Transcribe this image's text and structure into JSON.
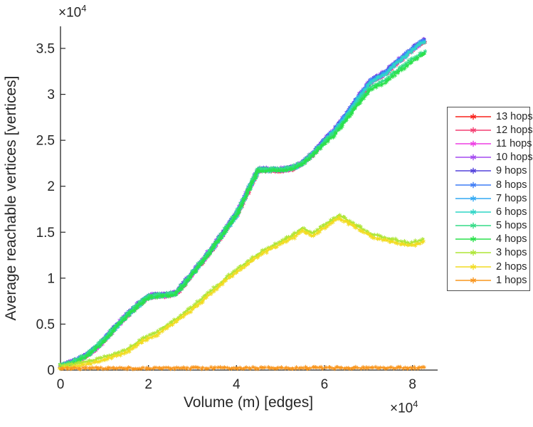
{
  "figure": {
    "background": "#ffffff",
    "axis_color": "#262626"
  },
  "chart_data": {
    "type": "line",
    "title": "",
    "xlabel": "Volume (m) [edges]",
    "ylabel": "Average reachable vertices [vertices]",
    "xlim": [
      0,
      85400
    ],
    "ylim": [
      0,
      37400
    ],
    "grid": false,
    "marker": "asterisk",
    "legend_position": "right-outside",
    "x_ticks": {
      "values": [
        0,
        20000,
        40000,
        60000,
        80000
      ],
      "labels": [
        "0",
        "2",
        "4",
        "6",
        "8"
      ],
      "multiplier_base": "×10",
      "multiplier_exp": "4"
    },
    "y_ticks": {
      "values": [
        0,
        5000,
        10000,
        15000,
        20000,
        25000,
        30000,
        35000
      ],
      "labels": [
        "0",
        "0.5",
        "1",
        "1.5",
        "2",
        "2.5",
        "3",
        "3.5"
      ],
      "multiplier_base": "×10",
      "multiplier_exp": "4"
    },
    "overlap_note": "Series 6-13 hops visually coincide (shared path 'bundle'); 4-5 hops coincide (path 'four'); 2-3 hops coincide (path 'two'). 'offset' is the small vertical separation in vertices at which a series peeks above the one drawn over it.",
    "paths": {
      "bundle": {
        "x": [
          0,
          2000,
          4000,
          6000,
          9000,
          12000,
          15000,
          18000,
          20000,
          22000,
          24000,
          26000,
          28000,
          31000,
          34000,
          37000,
          40000,
          42500,
          45000,
          47000,
          50000,
          53000,
          55000,
          57500,
          60000,
          62500,
          65000,
          67500,
          69000,
          70500,
          72000,
          74000,
          76000,
          78000,
          79500,
          81000,
          82000,
          83000
        ],
        "y": [
          300,
          600,
          1000,
          1500,
          2700,
          4300,
          5800,
          7100,
          7900,
          8000,
          8050,
          8200,
          9200,
          11000,
          12800,
          14800,
          16800,
          19300,
          21700,
          21700,
          21650,
          21900,
          22400,
          23500,
          24850,
          26100,
          27700,
          29400,
          30300,
          31300,
          31750,
          32250,
          33250,
          33950,
          34600,
          35200,
          35550,
          35800
        ]
      },
      "four": {
        "x": [
          0,
          2000,
          4000,
          6000,
          9000,
          12000,
          15000,
          18000,
          20000,
          22000,
          24000,
          26000,
          28000,
          31000,
          34000,
          37000,
          40000,
          42500,
          45000,
          47000,
          50000,
          53000,
          55000,
          57500,
          60000,
          62500,
          65000,
          67500,
          69000,
          70500,
          72000,
          74000,
          76000,
          78000,
          79500,
          81000,
          82000,
          83000
        ],
        "y": [
          300,
          600,
          1000,
          1500,
          2700,
          4300,
          5800,
          7100,
          7900,
          8000,
          8050,
          8200,
          9200,
          11000,
          12800,
          14800,
          16800,
          19300,
          21700,
          21700,
          21650,
          21900,
          22400,
          23400,
          24600,
          25700,
          27200,
          28800,
          29600,
          30500,
          30900,
          31300,
          32200,
          32800,
          33400,
          33900,
          34200,
          34400
        ]
      },
      "two": {
        "x": [
          0,
          3000,
          6000,
          10500,
          15000,
          18600,
          22000,
          26700,
          30000,
          34700,
          38000,
          42800,
          46000,
          50900,
          53000,
          54900,
          57400,
          60000,
          63300,
          66000,
          70300,
          73000,
          75900,
          79500,
          81600,
          82700
        ],
        "y": [
          200,
          350,
          600,
          1200,
          1900,
          3100,
          3900,
          5400,
          6600,
          8500,
          9900,
          11600,
          12700,
          13900,
          14400,
          15200,
          14600,
          15500,
          16600,
          15800,
          14600,
          14200,
          13900,
          13500,
          13800,
          14000
        ]
      },
      "one": {
        "x": [
          0,
          83000
        ],
        "y": [
          200,
          250
        ]
      }
    },
    "series": [
      {
        "name": "13 hops",
        "color": "#f8221c",
        "path": "bundle",
        "offset": 0
      },
      {
        "name": "12 hops",
        "color": "#f43f72",
        "path": "bundle",
        "offset": 0
      },
      {
        "name": "11 hops",
        "color": "#ee3fe4",
        "path": "bundle",
        "offset": 0
      },
      {
        "name": "10 hops",
        "color": "#a44af0",
        "path": "bundle",
        "offset": 260
      },
      {
        "name": "9 hops",
        "color": "#5342dc",
        "path": "bundle",
        "offset": 230
      },
      {
        "name": "8 hops",
        "color": "#3f7df6",
        "path": "bundle",
        "offset": 180
      },
      {
        "name": "7 hops",
        "color": "#32a9f4",
        "path": "bundle",
        "offset": 90
      },
      {
        "name": "6 hops",
        "color": "#2fd5c6",
        "path": "bundle",
        "offset": 0
      },
      {
        "name": "5 hops",
        "color": "#35dc87",
        "path": "four",
        "offset": 250
      },
      {
        "name": "4 hops",
        "color": "#2ae14b",
        "path": "four",
        "offset": 0
      },
      {
        "name": "3 hops",
        "color": "#aee637",
        "path": "two",
        "offset": 300
      },
      {
        "name": "2 hops",
        "color": "#f2dc22",
        "path": "two",
        "offset": 0
      },
      {
        "name": "1 hops",
        "color": "#f9961e",
        "path": "one",
        "offset": 0
      }
    ]
  }
}
